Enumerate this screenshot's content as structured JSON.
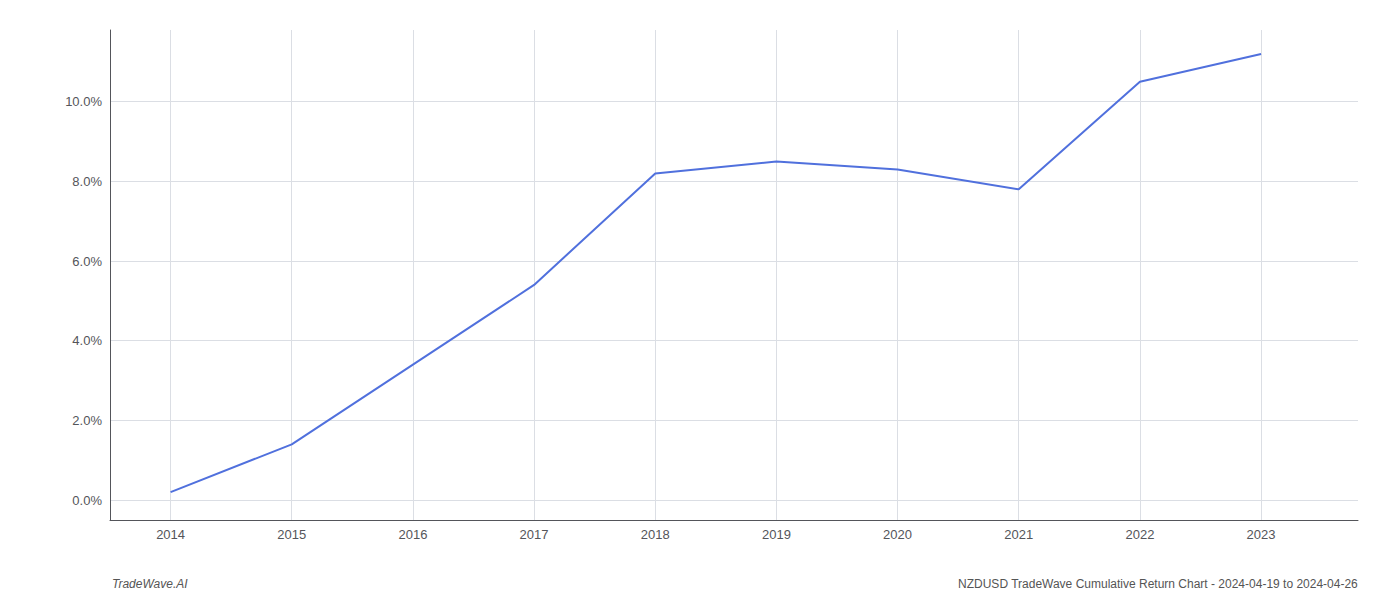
{
  "chart_data": {
    "type": "line",
    "x": [
      2014,
      2015,
      2016,
      2017,
      2018,
      2019,
      2020,
      2021,
      2022,
      2023
    ],
    "values": [
      0.002,
      0.014,
      0.034,
      0.054,
      0.082,
      0.085,
      0.083,
      0.078,
      0.105,
      0.112
    ],
    "xlim": [
      2013.5,
      2023.8
    ],
    "xticks": [
      2014,
      2015,
      2016,
      2017,
      2018,
      2019,
      2020,
      2021,
      2022,
      2023
    ],
    "ylim": [
      -0.005,
      0.118
    ],
    "yticks": [
      {
        "value": 0.0,
        "label": "0.0%"
      },
      {
        "value": 0.02,
        "label": "2.0%"
      },
      {
        "value": 0.04,
        "label": "4.0%"
      },
      {
        "value": 0.06,
        "label": "6.0%"
      },
      {
        "value": 0.08,
        "label": "8.0%"
      },
      {
        "value": 0.1,
        "label": "10.0%"
      }
    ],
    "grid": true,
    "annotations": [
      "TradeWave.AI",
      "NZDUSD TradeWave Cumulative Return Chart - 2024-04-19 to 2024-04-26"
    ]
  }
}
